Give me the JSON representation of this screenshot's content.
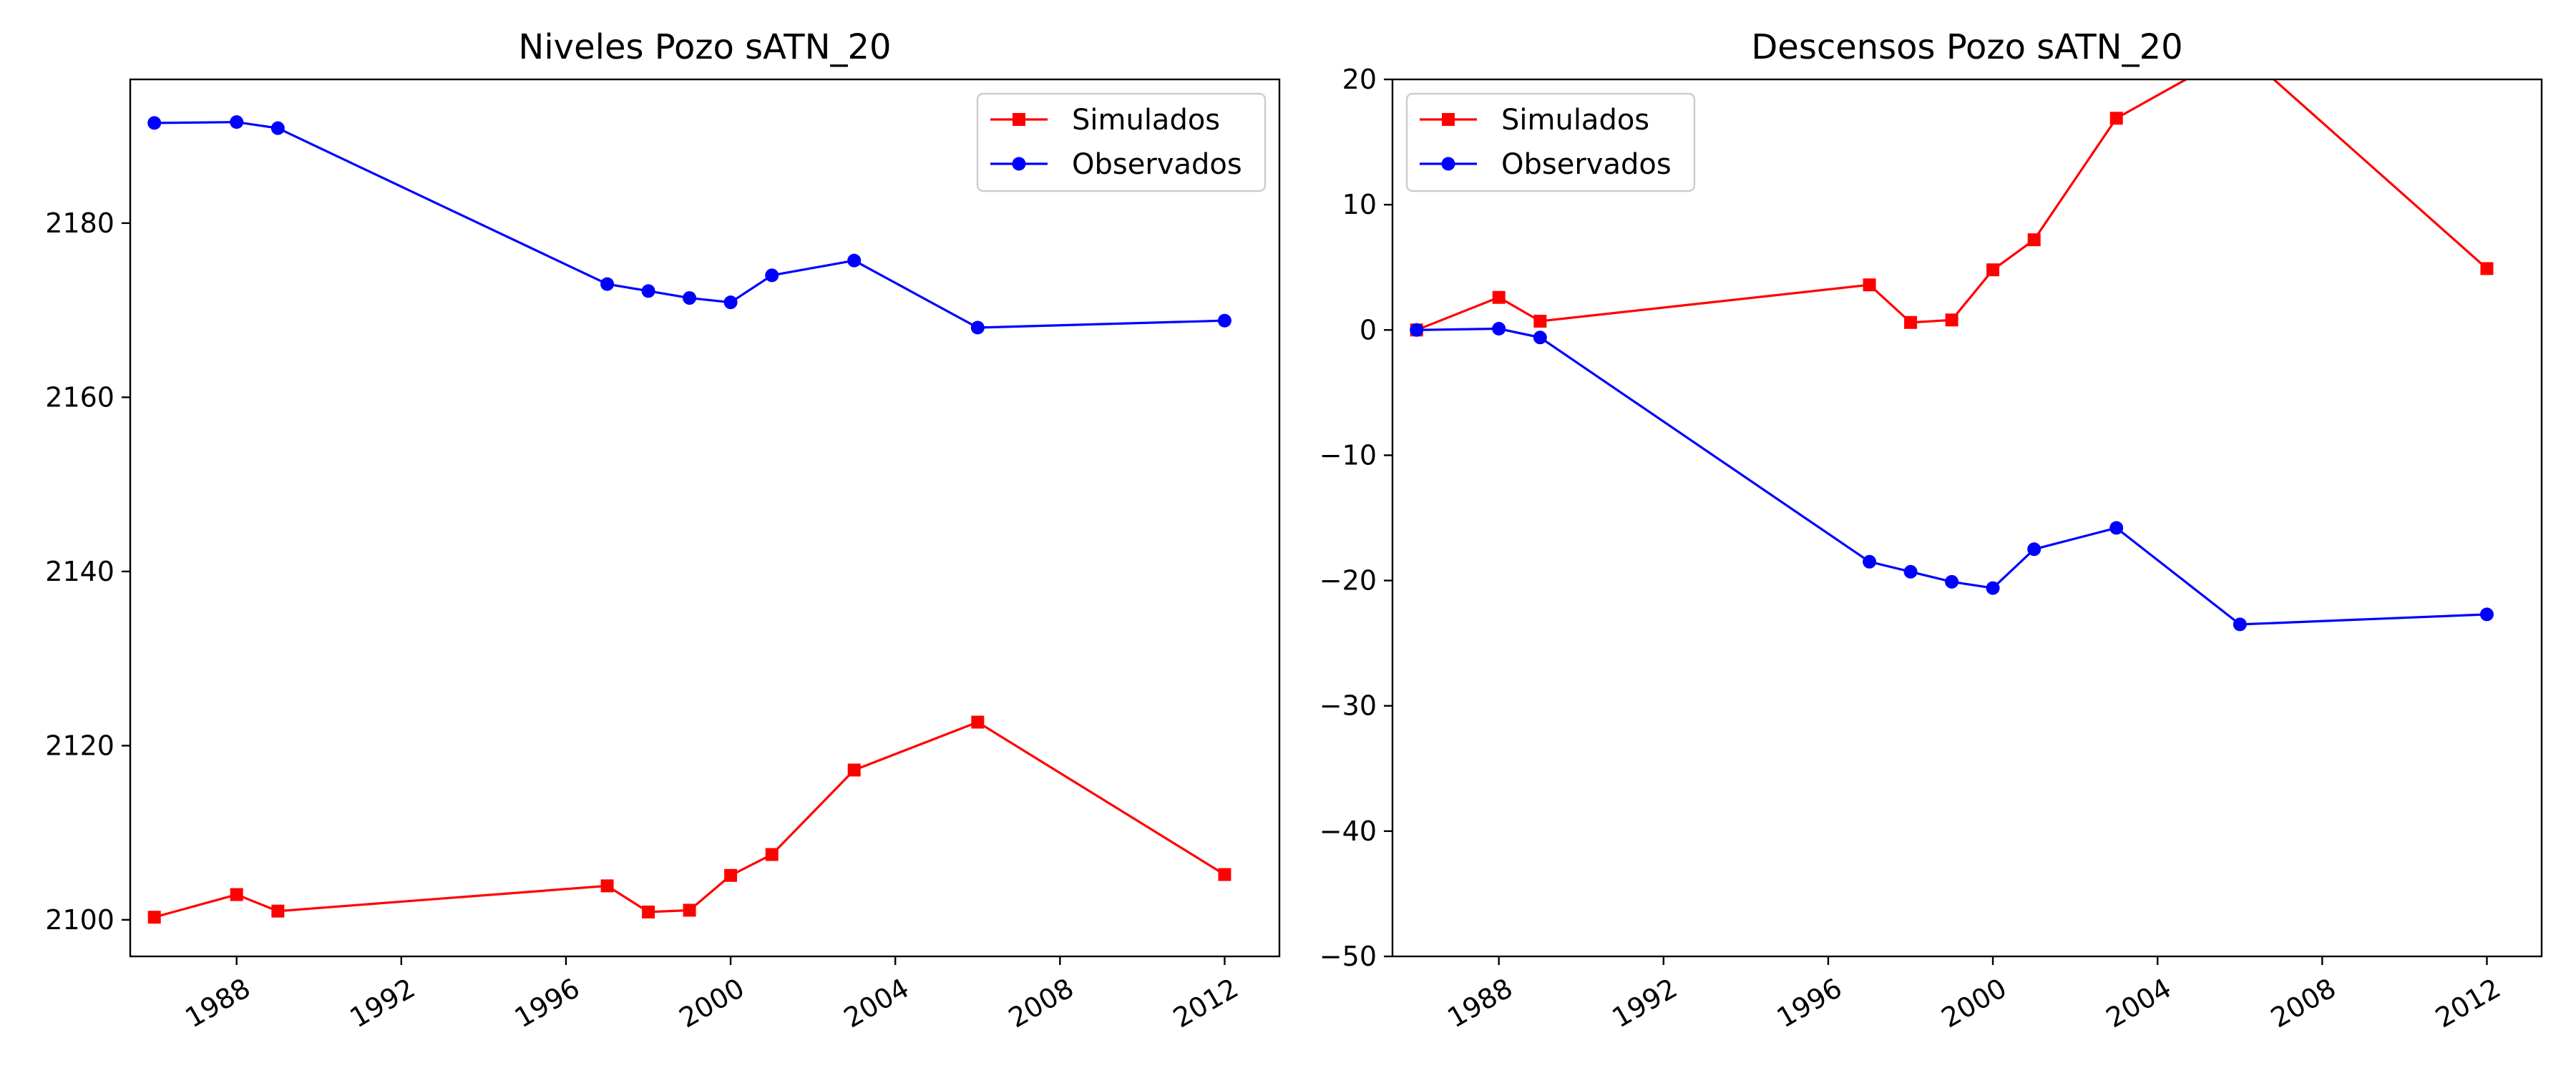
{
  "chart_data": [
    {
      "type": "line",
      "title": "Niveles Pozo sATN_20",
      "xlabel": "",
      "ylabel": "",
      "xlim": [
        "1985-06-01",
        "2013-05-01"
      ],
      "ylim": [
        2095.8,
        2196.5
      ],
      "xticks": [
        "1988-01-01",
        "1992-01-01",
        "1996-01-01",
        "2000-01-01",
        "2004-01-01",
        "2008-01-01",
        "2012-01-01"
      ],
      "xtick_labels": [
        "1988",
        "1992",
        "1996",
        "2000",
        "2004",
        "2008",
        "2012"
      ],
      "yticks": [
        2100,
        2120,
        2140,
        2160,
        2180
      ],
      "ytick_labels": [
        "2100",
        "2120",
        "2140",
        "2160",
        "2180"
      ],
      "grid": false,
      "legend": "top-right",
      "series": [
        {
          "name": "Simulados",
          "color": "#ff0000",
          "marker": "square",
          "x": [
            "1986-01-01",
            "1988-01-01",
            "1989-01-01",
            "1997-01-01",
            "1998-01-01",
            "1999-01-01",
            "2000-01-01",
            "2001-01-01",
            "2003-01-01",
            "2006-01-01",
            "2012-01-01"
          ],
          "values": [
            2100.3,
            2102.9,
            2101.0,
            2103.9,
            2100.9,
            2101.1,
            2105.1,
            2107.5,
            2117.2,
            2122.7,
            2105.2
          ]
        },
        {
          "name": "Observados",
          "color": "#0000ff",
          "marker": "circle",
          "x": [
            "1986-01-01",
            "1988-01-01",
            "1989-01-01",
            "1997-01-01",
            "1998-01-01",
            "1999-01-01",
            "2000-01-01",
            "2001-01-01",
            "2003-01-01",
            "2006-01-01",
            "2012-01-01"
          ],
          "values": [
            2191.5,
            2191.6,
            2190.9,
            2173.0,
            2172.2,
            2171.4,
            2170.9,
            2174.0,
            2175.7,
            2168.0,
            2168.8
          ]
        }
      ]
    },
    {
      "type": "line",
      "title": "Descensos Pozo sATN_20",
      "xlabel": "",
      "ylabel": "",
      "xlim": [
        "1985-06-01",
        "2013-05-01"
      ],
      "ylim": [
        -50,
        20
      ],
      "xticks": [
        "1988-01-01",
        "1992-01-01",
        "1996-01-01",
        "2000-01-01",
        "2004-01-01",
        "2008-01-01",
        "2012-01-01"
      ],
      "xtick_labels": [
        "1988",
        "1992",
        "1996",
        "2000",
        "2004",
        "2008",
        "2012"
      ],
      "yticks": [
        -50,
        -40,
        -30,
        -20,
        -10,
        0,
        10,
        20
      ],
      "ytick_labels": [
        "−50",
        "−40",
        "−30",
        "−20",
        "−10",
        "0",
        "10",
        "20"
      ],
      "grid": false,
      "legend": "top-left",
      "series": [
        {
          "name": "Simulados",
          "color": "#ff0000",
          "marker": "square",
          "x": [
            "1986-01-01",
            "1988-01-01",
            "1989-01-01",
            "1997-01-01",
            "1998-01-01",
            "1999-01-01",
            "2000-01-01",
            "2001-01-01",
            "2003-01-01",
            "2006-01-01",
            "2012-01-01"
          ],
          "values": [
            0.0,
            2.6,
            0.7,
            3.6,
            0.6,
            0.8,
            4.8,
            7.2,
            16.9,
            22.4,
            4.9
          ]
        },
        {
          "name": "Observados",
          "color": "#0000ff",
          "marker": "circle",
          "x": [
            "1986-01-01",
            "1988-01-01",
            "1989-01-01",
            "1997-01-01",
            "1998-01-01",
            "1999-01-01",
            "2000-01-01",
            "2001-01-01",
            "2003-01-01",
            "2006-01-01",
            "2012-01-01"
          ],
          "values": [
            0.0,
            0.1,
            -0.6,
            -18.5,
            -19.3,
            -20.1,
            -20.6,
            -17.5,
            -15.8,
            -23.5,
            -22.7
          ]
        }
      ]
    }
  ]
}
